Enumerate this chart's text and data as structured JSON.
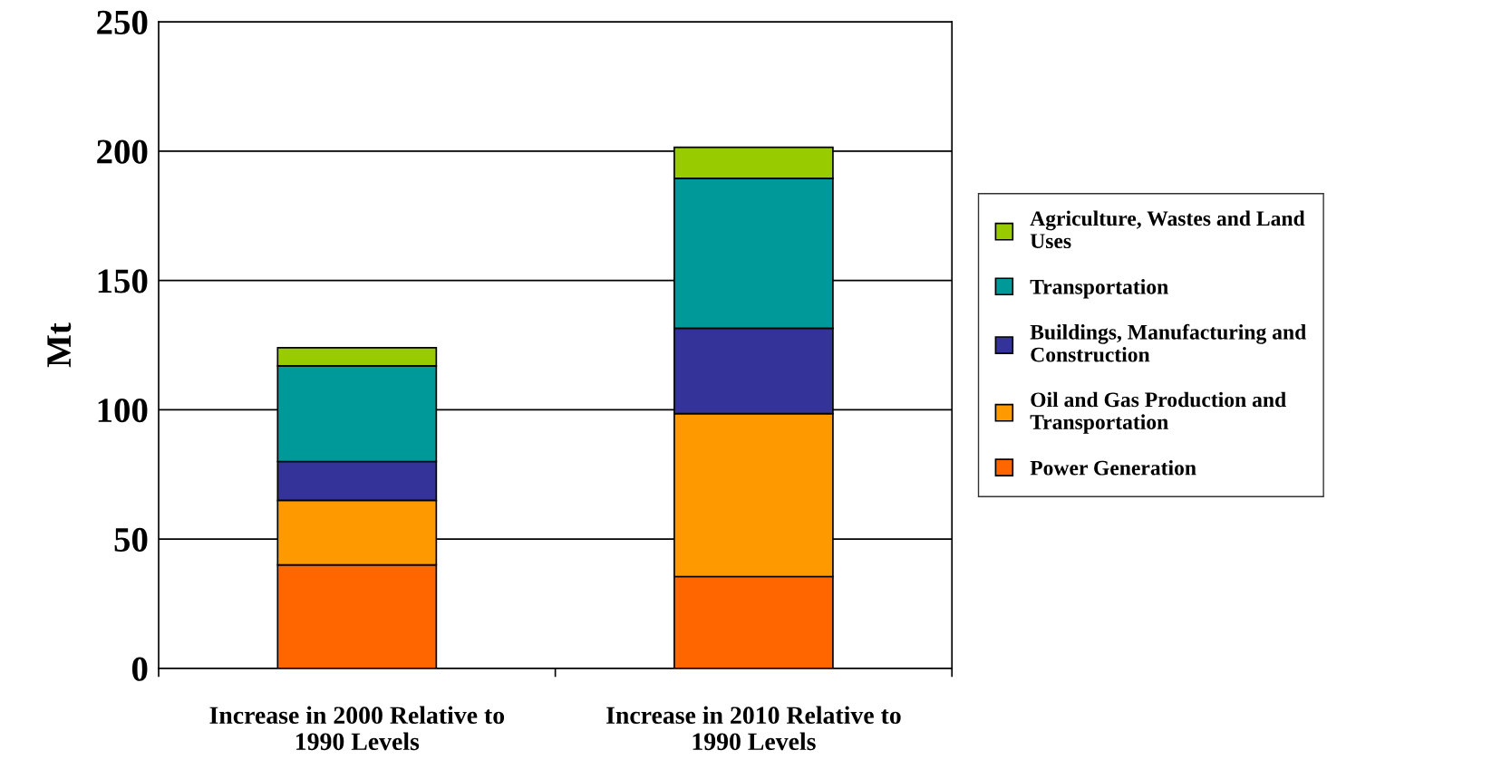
{
  "chart_data": {
    "type": "bar",
    "stacked": true,
    "ylabel": "Mt",
    "categories": [
      "Increase in 2000 Relative to 1990 Levels",
      "Increase in 2010 Relative to 1990 Levels"
    ],
    "series": [
      {
        "name": "Power Generation",
        "color": "#ff6600",
        "values": [
          40,
          35.5
        ]
      },
      {
        "name": "Oil and Gas Production and Transportation",
        "color": "#ff9900",
        "values": [
          25,
          63
        ]
      },
      {
        "name": "Buildings, Manufacturing and Construction",
        "color": "#333399",
        "values": [
          15,
          33
        ]
      },
      {
        "name": "Transportation",
        "color": "#009999",
        "values": [
          37,
          58
        ]
      },
      {
        "name": "Agriculture, Wastes and Land Uses",
        "color": "#99cc00",
        "values": [
          7,
          12
        ]
      }
    ],
    "ylim": [
      0,
      250
    ],
    "yticks": [
      0,
      50,
      100,
      150,
      200,
      250
    ],
    "grid": "y",
    "legend": "right"
  }
}
